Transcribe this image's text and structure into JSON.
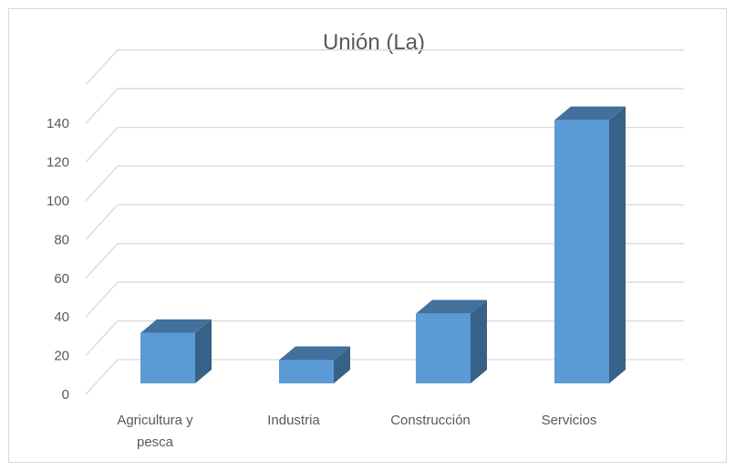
{
  "chart_data": {
    "type": "bar",
    "title": "Unión (La)",
    "categories": [
      "Agricultura y pesca",
      "Industria",
      "Construcción",
      "Servicios"
    ],
    "category_lines": [
      [
        "Agricultura y",
        "pesca"
      ],
      [
        "Industria"
      ],
      [
        "Construcción"
      ],
      [
        "Servicios"
      ]
    ],
    "values": [
      26,
      12,
      36,
      136
    ],
    "yticks": [
      0,
      20,
      40,
      60,
      80,
      100,
      120,
      140
    ],
    "ylim": [
      0,
      160
    ],
    "grid": true,
    "style": "3d-column",
    "colors": {
      "front": "#5b9bd5",
      "side": "#376187",
      "top": "#41719c",
      "grid": "#d9d9d9",
      "text": "#595959"
    }
  }
}
